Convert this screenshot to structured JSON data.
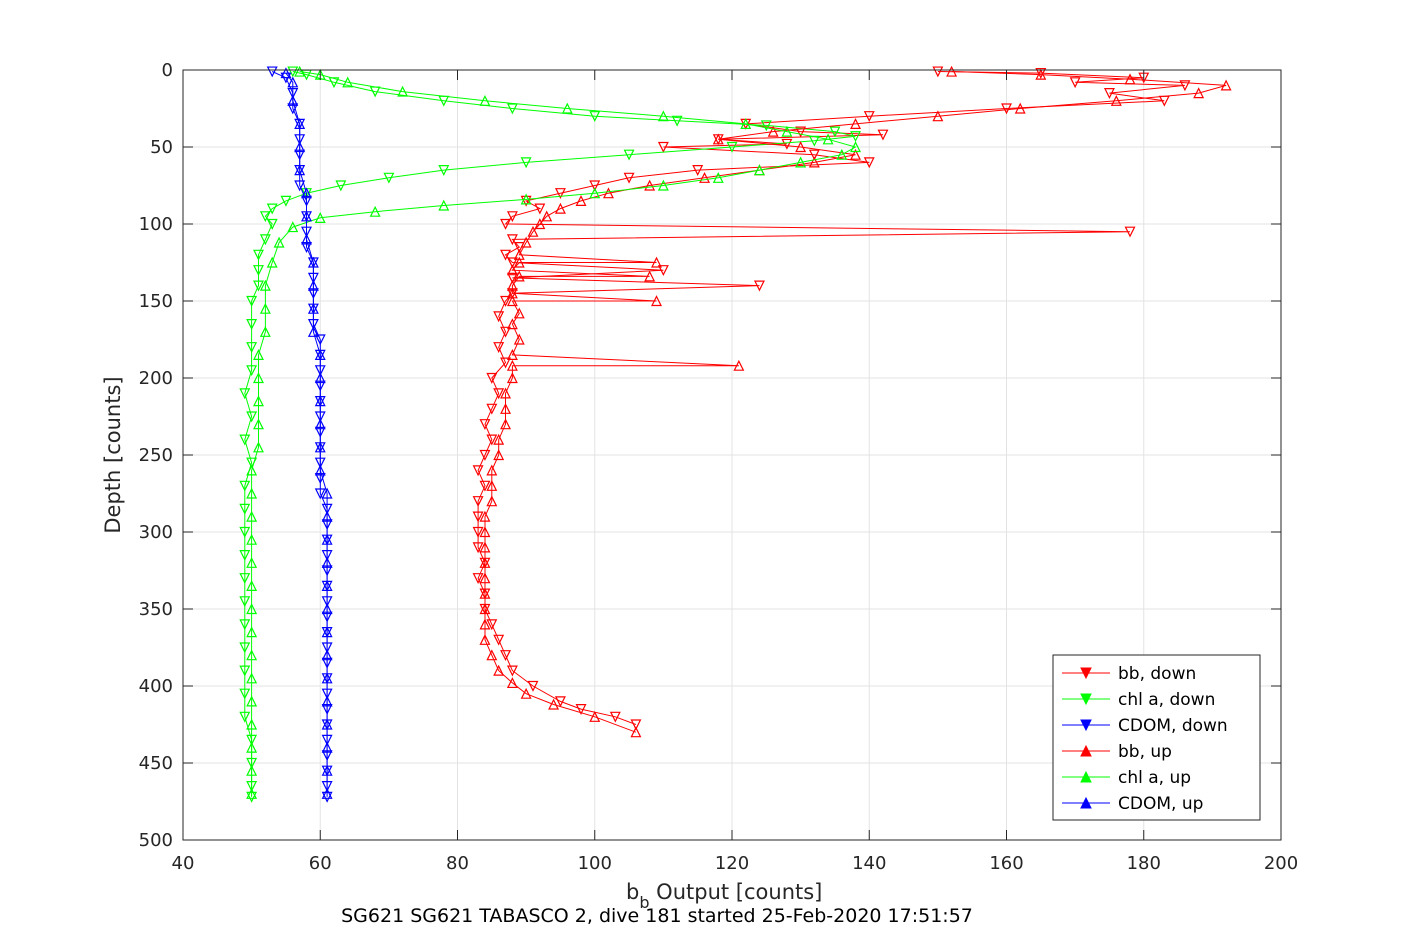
{
  "chart_data": {
    "type": "scatter",
    "xlabel_main": "b",
    "xlabel_sub": "b",
    "xlabel_rest": " Output [counts]",
    "ylabel": "Depth [counts]",
    "caption": "SG621 SG621 TABASCO 2, dive 181 started 25-Feb-2020 17:51:57",
    "xlim": [
      40,
      200
    ],
    "ylim": [
      0,
      500
    ],
    "y_reversed": true,
    "grid": true,
    "legend_position": "bottom-right",
    "x_ticks": [
      40,
      60,
      80,
      100,
      120,
      140,
      160,
      180,
      200
    ],
    "y_ticks": [
      0,
      50,
      100,
      150,
      200,
      250,
      300,
      350,
      400,
      450,
      500
    ],
    "colors": {
      "bb": "#ff0000",
      "chl": "#00ff00",
      "cdom": "#0000ff",
      "grid": "#e3e3e3",
      "axis": "#262626"
    },
    "series": [
      {
        "name": "bb, down",
        "color": "#ff0000",
        "marker": "triangle-down",
        "connected": true,
        "points": [
          [
            150,
            1
          ],
          [
            165,
            2
          ],
          [
            180,
            5
          ],
          [
            170,
            8
          ],
          [
            186,
            10
          ],
          [
            175,
            15
          ],
          [
            183,
            20
          ],
          [
            160,
            25
          ],
          [
            140,
            30
          ],
          [
            122,
            35
          ],
          [
            130,
            40
          ],
          [
            142,
            42
          ],
          [
            118,
            45
          ],
          [
            128,
            48
          ],
          [
            110,
            50
          ],
          [
            132,
            55
          ],
          [
            140,
            60
          ],
          [
            115,
            65
          ],
          [
            105,
            70
          ],
          [
            100,
            75
          ],
          [
            95,
            80
          ],
          [
            90,
            85
          ],
          [
            92,
            90
          ],
          [
            88,
            95
          ],
          [
            87,
            100
          ],
          [
            178,
            105
          ],
          [
            88,
            110
          ],
          [
            89,
            115
          ],
          [
            87,
            120
          ],
          [
            88,
            125
          ],
          [
            110,
            130
          ],
          [
            88,
            135
          ],
          [
            124,
            140
          ],
          [
            88,
            145
          ],
          [
            87,
            150
          ],
          [
            86,
            160
          ],
          [
            87,
            170
          ],
          [
            86,
            180
          ],
          [
            87,
            190
          ],
          [
            85,
            200
          ],
          [
            86,
            210
          ],
          [
            85,
            220
          ],
          [
            84,
            230
          ],
          [
            85,
            240
          ],
          [
            84,
            250
          ],
          [
            83,
            260
          ],
          [
            84,
            270
          ],
          [
            83,
            280
          ],
          [
            83,
            290
          ],
          [
            83,
            300
          ],
          [
            83,
            310
          ],
          [
            84,
            320
          ],
          [
            83,
            330
          ],
          [
            84,
            340
          ],
          [
            84,
            350
          ],
          [
            85,
            360
          ],
          [
            86,
            370
          ],
          [
            87,
            380
          ],
          [
            88,
            390
          ],
          [
            91,
            400
          ],
          [
            95,
            410
          ],
          [
            98,
            415
          ],
          [
            103,
            420
          ],
          [
            106,
            425
          ]
        ]
      },
      {
        "name": "chl a, down",
        "color": "#00ff00",
        "marker": "triangle-down",
        "connected": true,
        "points": [
          [
            56,
            1
          ],
          [
            58,
            3
          ],
          [
            62,
            8
          ],
          [
            68,
            14
          ],
          [
            78,
            20
          ],
          [
            88,
            25
          ],
          [
            100,
            30
          ],
          [
            112,
            33
          ],
          [
            125,
            36
          ],
          [
            135,
            40
          ],
          [
            138,
            43
          ],
          [
            132,
            46
          ],
          [
            120,
            50
          ],
          [
            105,
            55
          ],
          [
            90,
            60
          ],
          [
            78,
            65
          ],
          [
            70,
            70
          ],
          [
            63,
            75
          ],
          [
            58,
            80
          ],
          [
            55,
            85
          ],
          [
            53,
            90
          ],
          [
            52,
            95
          ],
          [
            53,
            100
          ],
          [
            52,
            110
          ],
          [
            51,
            120
          ],
          [
            51,
            130
          ],
          [
            51,
            140
          ],
          [
            50,
            150
          ],
          [
            50,
            165
          ],
          [
            50,
            180
          ],
          [
            50,
            195
          ],
          [
            49,
            210
          ],
          [
            50,
            225
          ],
          [
            49,
            240
          ],
          [
            50,
            255
          ],
          [
            49,
            270
          ],
          [
            49,
            285
          ],
          [
            49,
            300
          ],
          [
            49,
            315
          ],
          [
            49,
            330
          ],
          [
            49,
            345
          ],
          [
            49,
            360
          ],
          [
            49,
            375
          ],
          [
            49,
            390
          ],
          [
            49,
            405
          ],
          [
            49,
            420
          ],
          [
            50,
            435
          ],
          [
            50,
            450
          ],
          [
            50,
            465
          ],
          [
            50,
            472
          ]
        ]
      },
      {
        "name": "CDOM, down",
        "color": "#0000ff",
        "marker": "triangle-down",
        "connected": true,
        "points": [
          [
            53,
            1
          ],
          [
            55,
            5
          ],
          [
            56,
            15
          ],
          [
            56,
            25
          ],
          [
            57,
            35
          ],
          [
            57,
            45
          ],
          [
            57,
            55
          ],
          [
            57,
            65
          ],
          [
            57,
            75
          ],
          [
            58,
            85
          ],
          [
            58,
            95
          ],
          [
            58,
            105
          ],
          [
            58,
            115
          ],
          [
            59,
            125
          ],
          [
            59,
            135
          ],
          [
            59,
            145
          ],
          [
            59,
            155
          ],
          [
            59,
            165
          ],
          [
            60,
            175
          ],
          [
            60,
            185
          ],
          [
            60,
            195
          ],
          [
            60,
            205
          ],
          [
            60,
            215
          ],
          [
            60,
            225
          ],
          [
            60,
            235
          ],
          [
            60,
            245
          ],
          [
            60,
            255
          ],
          [
            60,
            265
          ],
          [
            60,
            275
          ],
          [
            61,
            285
          ],
          [
            61,
            295
          ],
          [
            61,
            305
          ],
          [
            61,
            315
          ],
          [
            61,
            325
          ],
          [
            61,
            335
          ],
          [
            61,
            345
          ],
          [
            61,
            355
          ],
          [
            61,
            365
          ],
          [
            61,
            375
          ],
          [
            61,
            385
          ],
          [
            61,
            395
          ],
          [
            61,
            405
          ],
          [
            61,
            415
          ],
          [
            61,
            425
          ],
          [
            61,
            435
          ],
          [
            61,
            445
          ],
          [
            61,
            455
          ],
          [
            61,
            465
          ],
          [
            61,
            472
          ]
        ]
      },
      {
        "name": "bb, up",
        "color": "#ff0000",
        "marker": "triangle-up",
        "connected": true,
        "points": [
          [
            106,
            430
          ],
          [
            100,
            420
          ],
          [
            94,
            412
          ],
          [
            90,
            405
          ],
          [
            88,
            398
          ],
          [
            86,
            390
          ],
          [
            85,
            380
          ],
          [
            84,
            370
          ],
          [
            84,
            360
          ],
          [
            84,
            350
          ],
          [
            84,
            340
          ],
          [
            84,
            330
          ],
          [
            84,
            320
          ],
          [
            84,
            310
          ],
          [
            84,
            300
          ],
          [
            84,
            290
          ],
          [
            85,
            280
          ],
          [
            85,
            270
          ],
          [
            85,
            260
          ],
          [
            86,
            250
          ],
          [
            86,
            240
          ],
          [
            87,
            230
          ],
          [
            87,
            220
          ],
          [
            87,
            210
          ],
          [
            88,
            200
          ],
          [
            88,
            192
          ],
          [
            121,
            192
          ],
          [
            88,
            185
          ],
          [
            89,
            175
          ],
          [
            88,
            165
          ],
          [
            89,
            158
          ],
          [
            88,
            150
          ],
          [
            109,
            150
          ],
          [
            88,
            145
          ],
          [
            88,
            140
          ],
          [
            89,
            134
          ],
          [
            108,
            134
          ],
          [
            88,
            130
          ],
          [
            89,
            125
          ],
          [
            109,
            125
          ],
          [
            89,
            120
          ],
          [
            90,
            112
          ],
          [
            91,
            105
          ],
          [
            92,
            100
          ],
          [
            93,
            95
          ],
          [
            95,
            90
          ],
          [
            98,
            85
          ],
          [
            102,
            80
          ],
          [
            108,
            75
          ],
          [
            116,
            70
          ],
          [
            124,
            65
          ],
          [
            132,
            60
          ],
          [
            138,
            55
          ],
          [
            130,
            50
          ],
          [
            118,
            45
          ],
          [
            126,
            40
          ],
          [
            138,
            35
          ],
          [
            150,
            30
          ],
          [
            162,
            25
          ],
          [
            176,
            20
          ],
          [
            188,
            15
          ],
          [
            192,
            10
          ],
          [
            178,
            6
          ],
          [
            165,
            3
          ],
          [
            152,
            1
          ]
        ]
      },
      {
        "name": "chl a, up",
        "color": "#00ff00",
        "marker": "triangle-up",
        "connected": true,
        "points": [
          [
            50,
            470
          ],
          [
            50,
            455
          ],
          [
            50,
            440
          ],
          [
            50,
            425
          ],
          [
            50,
            410
          ],
          [
            50,
            395
          ],
          [
            50,
            380
          ],
          [
            50,
            365
          ],
          [
            50,
            350
          ],
          [
            50,
            335
          ],
          [
            50,
            320
          ],
          [
            50,
            305
          ],
          [
            50,
            290
          ],
          [
            50,
            275
          ],
          [
            50,
            260
          ],
          [
            51,
            245
          ],
          [
            51,
            230
          ],
          [
            51,
            215
          ],
          [
            51,
            200
          ],
          [
            51,
            185
          ],
          [
            52,
            170
          ],
          [
            52,
            155
          ],
          [
            52,
            140
          ],
          [
            53,
            125
          ],
          [
            54,
            112
          ],
          [
            56,
            102
          ],
          [
            60,
            96
          ],
          [
            68,
            92
          ],
          [
            78,
            88
          ],
          [
            90,
            84
          ],
          [
            100,
            80
          ],
          [
            110,
            75
          ],
          [
            118,
            70
          ],
          [
            124,
            65
          ],
          [
            130,
            60
          ],
          [
            136,
            55
          ],
          [
            138,
            50
          ],
          [
            134,
            45
          ],
          [
            128,
            40
          ],
          [
            122,
            35
          ],
          [
            110,
            30
          ],
          [
            96,
            25
          ],
          [
            84,
            20
          ],
          [
            72,
            14
          ],
          [
            64,
            8
          ],
          [
            60,
            3
          ],
          [
            57,
            1
          ]
        ]
      },
      {
        "name": "CDOM, up",
        "color": "#0000ff",
        "marker": "triangle-up",
        "connected": true,
        "points": [
          [
            61,
            470
          ],
          [
            61,
            455
          ],
          [
            61,
            440
          ],
          [
            61,
            425
          ],
          [
            61,
            410
          ],
          [
            61,
            395
          ],
          [
            61,
            380
          ],
          [
            61,
            365
          ],
          [
            61,
            350
          ],
          [
            61,
            335
          ],
          [
            61,
            320
          ],
          [
            61,
            305
          ],
          [
            61,
            290
          ],
          [
            61,
            275
          ],
          [
            60,
            260
          ],
          [
            60,
            245
          ],
          [
            60,
            230
          ],
          [
            60,
            215
          ],
          [
            60,
            200
          ],
          [
            60,
            185
          ],
          [
            59,
            170
          ],
          [
            59,
            155
          ],
          [
            59,
            140
          ],
          [
            59,
            125
          ],
          [
            58,
            110
          ],
          [
            58,
            95
          ],
          [
            58,
            80
          ],
          [
            57,
            65
          ],
          [
            57,
            50
          ],
          [
            57,
            35
          ],
          [
            56,
            20
          ],
          [
            56,
            8
          ],
          [
            55,
            2
          ]
        ]
      }
    ]
  },
  "legend_items": [
    "bb, down",
    "chl a, down",
    "CDOM, down",
    "bb, up",
    "chl a, up",
    "CDOM, up"
  ]
}
